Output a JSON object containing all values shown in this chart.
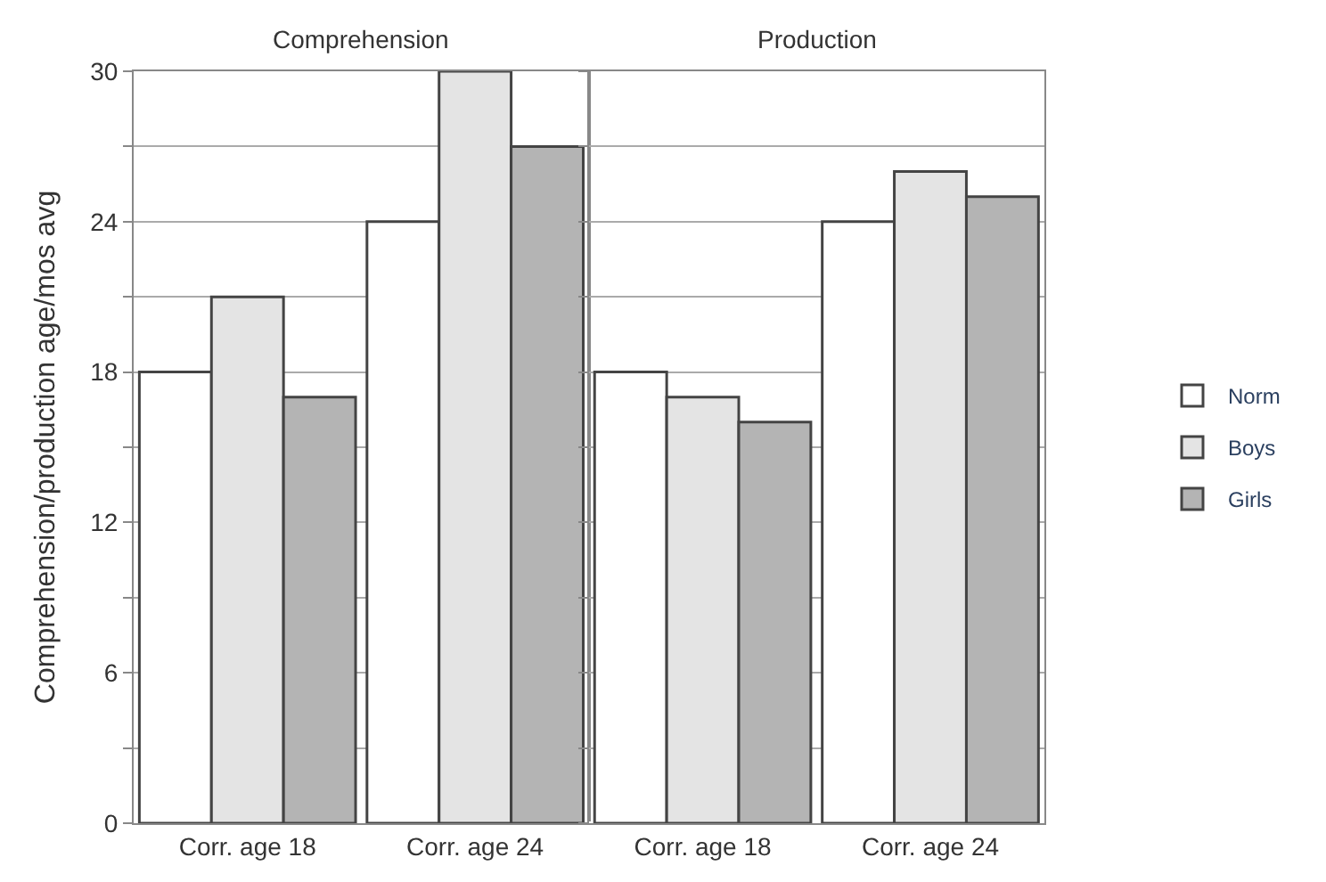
{
  "chart_data": [
    {
      "type": "bar",
      "title": "Comprehension",
      "ylabel": "Comprehension/production age/mos avg",
      "categories": [
        "Corr. age 18",
        "Corr. age 24"
      ],
      "series": [
        {
          "name": "Norm",
          "color": "#ffffff",
          "values": [
            18,
            24
          ]
        },
        {
          "name": "Boys",
          "color": "#e4e4e4",
          "values": [
            21,
            30
          ]
        },
        {
          "name": "Girls",
          "color": "#b4b4b4",
          "values": [
            17,
            27
          ]
        }
      ],
      "ylim": [
        0,
        30
      ],
      "yticks": [
        0,
        {
          "value": 3,
          "label": null
        },
        6,
        {
          "value": 9,
          "label": null
        },
        12,
        {
          "value": 15,
          "label": null
        },
        18,
        {
          "value": 21,
          "label": null
        },
        24,
        {
          "value": 27,
          "label": null
        },
        30
      ],
      "grid": "y",
      "legend": "right"
    },
    {
      "type": "bar",
      "title": "Production",
      "categories": [
        "Corr. age 18",
        "Corr. age 24"
      ],
      "series": [
        {
          "color": "#ffffff",
          "values": [
            18,
            24
          ]
        },
        {
          "color": "#e4e4e4",
          "values": [
            17,
            26
          ]
        },
        {
          "color": "#b4b4b4",
          "values": [
            16,
            25
          ]
        }
      ],
      "ylim": [
        0,
        30
      ],
      "yticks": [
        0,
        {
          "value": 3,
          "label": null
        },
        6,
        {
          "value": 9,
          "label": null
        },
        12,
        {
          "value": 15,
          "label": null
        },
        18,
        {
          "value": 21,
          "label": null
        },
        24,
        {
          "value": 27,
          "label": null
        },
        30
      ],
      "grid": "y",
      "tick_labels": "x",
      "legend": false
    }
  ]
}
